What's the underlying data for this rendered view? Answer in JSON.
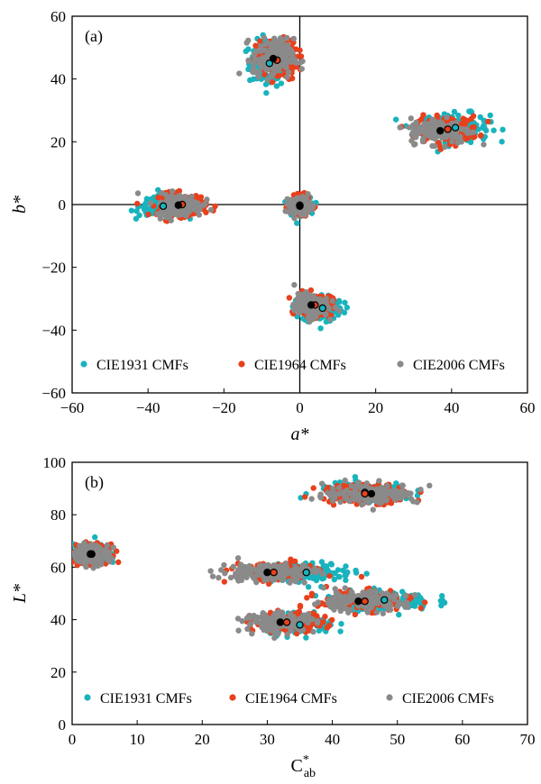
{
  "chart_data": [
    {
      "panel_label": "(a)",
      "type": "scatter",
      "xlabel": "a*",
      "ylabel": "b*",
      "xlim": [
        -60,
        60
      ],
      "ylim": [
        -60,
        60
      ],
      "xticks": [
        -60,
        -40,
        -20,
        0,
        20,
        40,
        60
      ],
      "yticks": [
        -60,
        -40,
        -20,
        0,
        20,
        40,
        60
      ],
      "reference_lines": {
        "x": 0,
        "y": 0
      },
      "legend_position": "bottom",
      "series": [
        {
          "name": "CIE1931 CMFs",
          "color": "#19b3bd",
          "clusters": [
            {
              "center": [
                -8,
                45
              ],
              "spread": [
                6,
                8
              ]
            },
            {
              "center": [
                41,
                24.5
              ],
              "spread": [
                10,
                5
              ]
            },
            {
              "center": [
                -36,
                -0.5
              ],
              "spread": [
                7,
                3.5
              ]
            },
            {
              "center": [
                0,
                -0.5
              ],
              "spread": [
                3,
                3
              ]
            },
            {
              "center": [
                6,
                -33
              ],
              "spread": [
                6,
                5
              ]
            }
          ]
        },
        {
          "name": "CIE1964 CMFs",
          "color": "#e8401c",
          "clusters": [
            {
              "center": [
                -6,
                46
              ],
              "spread": [
                6,
                7
              ]
            },
            {
              "center": [
                39,
                24
              ],
              "spread": [
                9,
                4.5
              ]
            },
            {
              "center": [
                -31,
                0
              ],
              "spread": [
                7,
                4
              ]
            },
            {
              "center": [
                0,
                -0.2
              ],
              "spread": [
                3,
                3
              ]
            },
            {
              "center": [
                4,
                -32
              ],
              "spread": [
                5,
                4
              ]
            }
          ]
        },
        {
          "name": "CIE2006 CMFs",
          "color": "#8a8a8a",
          "clusters": [
            {
              "center": [
                -7,
                46.5
              ],
              "spread": [
                6,
                7
              ]
            },
            {
              "center": [
                37,
                23.5
              ],
              "spread": [
                9,
                4.5
              ]
            },
            {
              "center": [
                -32,
                -0.2
              ],
              "spread": [
                7,
                4
              ]
            },
            {
              "center": [
                0,
                -0.3
              ],
              "spread": [
                3,
                3
              ]
            },
            {
              "center": [
                3,
                -32
              ],
              "spread": [
                5,
                4
              ]
            }
          ]
        }
      ]
    },
    {
      "panel_label": "(b)",
      "type": "scatter",
      "xlabel": "C*ab",
      "xlabel_main": "C",
      "xlabel_sup": "*",
      "xlabel_sub": "ab",
      "ylabel": "L*",
      "xlim": [
        0,
        70
      ],
      "ylim": [
        0,
        100
      ],
      "xticks": [
        0,
        10,
        20,
        30,
        40,
        50,
        60,
        70
      ],
      "yticks": [
        0,
        20,
        40,
        60,
        80,
        100
      ],
      "legend_position": "bottom",
      "series": [
        {
          "name": "CIE1931 CMFs",
          "color": "#19b3bd",
          "clusters": [
            {
              "center": [
                3,
                65
              ],
              "spread": [
                3,
                4
              ]
            },
            {
              "center": [
                36,
                58
              ],
              "spread": [
                8,
                4
              ]
            },
            {
              "center": [
                48,
                47.5
              ],
              "spread": [
                8,
                4
              ]
            },
            {
              "center": [
                35,
                38
              ],
              "spread": [
                6,
                4
              ]
            },
            {
              "center": [
                45,
                88.5
              ],
              "spread": [
                8,
                4
              ]
            }
          ]
        },
        {
          "name": "CIE1964 CMFs",
          "color": "#e8401c",
          "clusters": [
            {
              "center": [
                2.8,
                65
              ],
              "spread": [
                3,
                4
              ]
            },
            {
              "center": [
                31,
                58
              ],
              "spread": [
                7,
                4
              ]
            },
            {
              "center": [
                45,
                47
              ],
              "spread": [
                8,
                4
              ]
            },
            {
              "center": [
                33,
                39
              ],
              "spread": [
                6,
                4
              ]
            },
            {
              "center": [
                45,
                88
              ],
              "spread": [
                8,
                4
              ]
            }
          ]
        },
        {
          "name": "CIE2006 CMFs",
          "color": "#8a8a8a",
          "clusters": [
            {
              "center": [
                3,
                65
              ],
              "spread": [
                3,
                4
              ]
            },
            {
              "center": [
                30,
                58
              ],
              "spread": [
                8,
                4
              ]
            },
            {
              "center": [
                44,
                47
              ],
              "spread": [
                8,
                4
              ]
            },
            {
              "center": [
                32,
                39
              ],
              "spread": [
                6,
                4
              ]
            },
            {
              "center": [
                46,
                88
              ],
              "spread": [
                8,
                4
              ]
            }
          ]
        }
      ]
    }
  ]
}
